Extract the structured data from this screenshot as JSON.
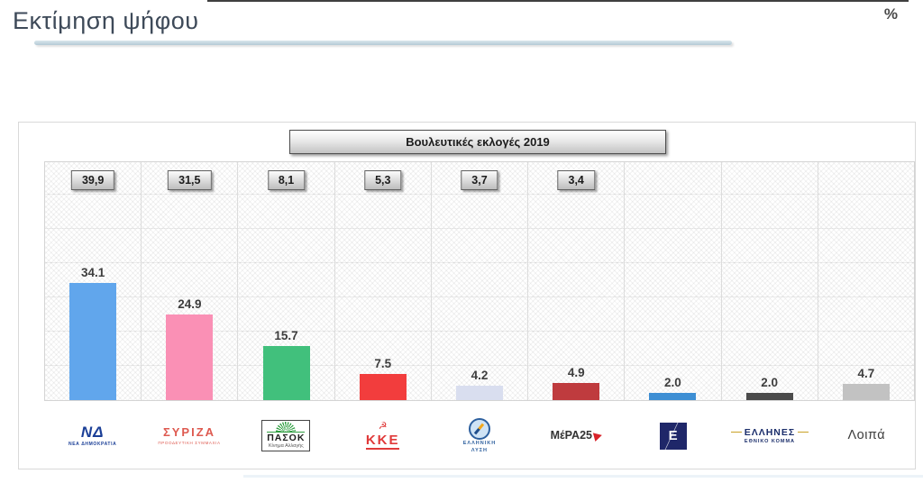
{
  "page": {
    "title": "Εκτίμηση ψήφου",
    "unit_label": "%"
  },
  "header_box": {
    "label": "Βουλευτικές εκλογές 2019"
  },
  "chart_data": {
    "type": "bar",
    "title": "Εκτίμηση ψήφου",
    "categories": [
      "ΝΔ",
      "ΣΥΡΙΖΑ",
      "ΠΑΣΟΚ",
      "ΚΚΕ",
      "ΕΛΛΗΝΙΚΗ ΛΥΣΗ",
      "ΜέΡΑ25",
      "ΠΛΕΥΣΗ ΕΛΕΥΘΕΡΙΑΣ",
      "ΕΛΛΗΝΕΣ ΕΘΝΙΚΟ ΚΟΜΜΑ",
      "Λοιπά"
    ],
    "series": [
      {
        "name": "Εκτίμηση ψήφου",
        "values": [
          34.1,
          24.9,
          15.7,
          7.5,
          4.2,
          4.9,
          2.0,
          2.0,
          4.7
        ]
      },
      {
        "name": "Βουλευτικές εκλογές 2019",
        "values": [
          39.9,
          31.5,
          8.1,
          5.3,
          3.7,
          3.4,
          null,
          null,
          null
        ]
      }
    ],
    "xlabel": "",
    "ylabel": "",
    "unit": "%",
    "ylim": [
      0,
      70
    ],
    "grid_step": 10,
    "grid": "on",
    "legend_position": "none"
  },
  "parties": [
    {
      "id": "nd",
      "estimate": 34.1,
      "estimate_label": "34.1",
      "prev": 39.9,
      "prev_label": "39,9",
      "color": "#61a6ec",
      "logo": {
        "style": "nd",
        "icon": "nd-monogram-icon",
        "main": "ΝΔ",
        "sub": "ΝΕΑ ΔΗΜΟΚΡΑΤΙΑ"
      }
    },
    {
      "id": "syriza",
      "estimate": 24.9,
      "estimate_label": "24.9",
      "prev": 31.5,
      "prev_label": "31,5",
      "color": "#fa90b5",
      "logo": {
        "style": "syriza",
        "icon": "syriza-wordmark-icon",
        "main": "ΣΥΡΙΖΑ",
        "sub": "ΠΡΟΟΔΕΥΤΙΚΗ ΣΥΜΜΑΧΙΑ"
      }
    },
    {
      "id": "pasok",
      "estimate": 15.7,
      "estimate_label": "15.7",
      "prev": 8.1,
      "prev_label": "8,1",
      "color": "#41c07c",
      "logo": {
        "style": "pasok",
        "icon": "sunburst-icon",
        "main": "ΠΑΣΟΚ",
        "sub": "Κίνημα Αλλαγής"
      }
    },
    {
      "id": "kke",
      "estimate": 7.5,
      "estimate_label": "7.5",
      "prev": 5.3,
      "prev_label": "5,3",
      "color": "#f23d3d",
      "logo": {
        "style": "kke",
        "icon": "hammer-sickle-icon",
        "glyph": "☭",
        "main": "ΚΚΕ"
      }
    },
    {
      "id": "elliniki-lysi",
      "estimate": 4.2,
      "estimate_label": "4.2",
      "prev": 3.7,
      "prev_label": "3,7",
      "color": "#d9deef",
      "logo": {
        "style": "lysi",
        "icon": "compass-icon",
        "sub1": "ΕΛΛΗΝΙΚΗ",
        "sub2": "ΛΥΣΗ"
      }
    },
    {
      "id": "mera25",
      "estimate": 4.9,
      "estimate_label": "4.9",
      "prev": 3.4,
      "prev_label": "3,4",
      "color": "#bf3b3e",
      "logo": {
        "style": "mera",
        "icon": "red-arrow-icon",
        "main": "ΜέΡΑ25"
      }
    },
    {
      "id": "plefsi-eleftherias",
      "estimate": 2.0,
      "estimate_label": "2.0",
      "prev": null,
      "prev_label": null,
      "color": "#3e8fd4",
      "logo": {
        "style": "plefsi",
        "icon": "epsilon-square-icon",
        "main": "Ε"
      }
    },
    {
      "id": "ellines",
      "estimate": 2.0,
      "estimate_label": "2.0",
      "prev": null,
      "prev_label": null,
      "color": "#4b4b4b",
      "logo": {
        "style": "ellines",
        "icon": "ellines-wordmark-icon",
        "main": "ΕΛΛΗΝΕΣ",
        "sub": "ΕΘΝΙΚΟ ΚΟΜΜΑ"
      }
    },
    {
      "id": "loipa",
      "estimate": 4.7,
      "estimate_label": "4.7",
      "prev": null,
      "prev_label": null,
      "color": "#c2c2c2",
      "logo": {
        "style": "text",
        "main": "Λοιπά"
      }
    }
  ],
  "style_colors": {
    "title_text": "#3e4a59",
    "title_underline": "#b4cad6",
    "box_border": "#4e4e4e",
    "gridline": "#e2e2e2"
  }
}
